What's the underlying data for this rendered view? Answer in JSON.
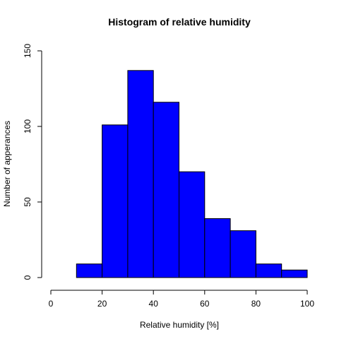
{
  "chart_data": {
    "type": "bar",
    "title": "Histogram of relative humidity",
    "xlabel": "Relative humidity [%]",
    "ylabel": "Number of apperances",
    "bins": [
      [
        10,
        20
      ],
      [
        20,
        30
      ],
      [
        30,
        40
      ],
      [
        40,
        50
      ],
      [
        50,
        60
      ],
      [
        60,
        70
      ],
      [
        70,
        80
      ],
      [
        80,
        90
      ],
      [
        90,
        100
      ]
    ],
    "values": [
      9,
      101,
      137,
      116,
      70,
      39,
      31,
      9,
      5
    ],
    "xlim": [
      0,
      100
    ],
    "ylim": [
      0,
      150
    ],
    "xticks": [
      0,
      20,
      40,
      60,
      80,
      100
    ],
    "yticks": [
      0,
      50,
      100,
      150
    ],
    "bar_color": "#0000ff",
    "grid": false,
    "legend": "none"
  }
}
